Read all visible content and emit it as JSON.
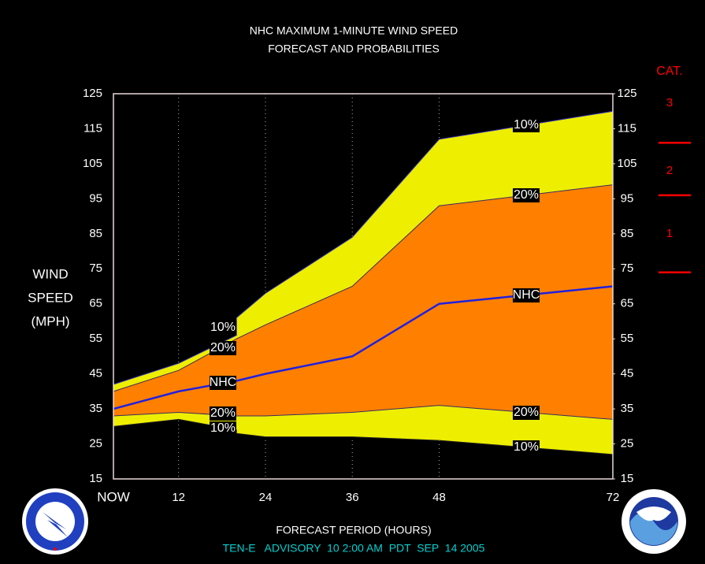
{
  "chart_data": {
    "type": "area",
    "title": "NHC MAXIMUM 1-MINUTE WIND SPEED",
    "subtitle": "FORECAST AND PROBABILITIES",
    "y_label": [
      "WIND",
      "SPEED",
      "(MPH)"
    ],
    "x_label": "FORECAST PERIOD (HOURS)",
    "footer": "TEN-E   ADVISORY  10 2:00 AM  PDT  SEP  14 2005",
    "x": [
      3,
      12,
      20,
      20,
      24,
      36,
      48,
      72
    ],
    "xlim": [
      3,
      72
    ],
    "xticks": [
      {
        "value": 3,
        "label": "NOW"
      },
      12,
      24,
      36,
      48,
      72
    ],
    "ylim": [
      15,
      125
    ],
    "yticks": [
      15,
      25,
      35,
      45,
      55,
      65,
      75,
      85,
      95,
      105,
      115,
      125
    ],
    "band_colors": [
      "#eeee00",
      "#ff8000"
    ],
    "series": [
      {
        "name": "10%",
        "color": "#3030c0",
        "values": [
          42,
          48,
          56,
          61,
          68,
          84,
          112,
          120
        ]
      },
      {
        "name": "20%",
        "color": "#3a2a60",
        "values": [
          40,
          46,
          55,
          55,
          59,
          70,
          93,
          99
        ]
      },
      {
        "name": "NHC",
        "color": "#2020e0",
        "values": [
          35,
          40,
          43,
          43,
          45,
          50,
          65,
          70
        ]
      },
      {
        "name": "20%",
        "color": "#3a2a60",
        "values": [
          33,
          34,
          33,
          33,
          33,
          34,
          36,
          32
        ]
      },
      {
        "name": "10%",
        "color": "#202020",
        "values": [
          30,
          32,
          29,
          28,
          27,
          27,
          26,
          22
        ]
      }
    ],
    "categories_scale": {
      "title": "CAT.",
      "labels": [
        "3",
        "2",
        "1"
      ],
      "thresholds": [
        111,
        96,
        74
      ],
      "color": "#ff0000"
    }
  }
}
